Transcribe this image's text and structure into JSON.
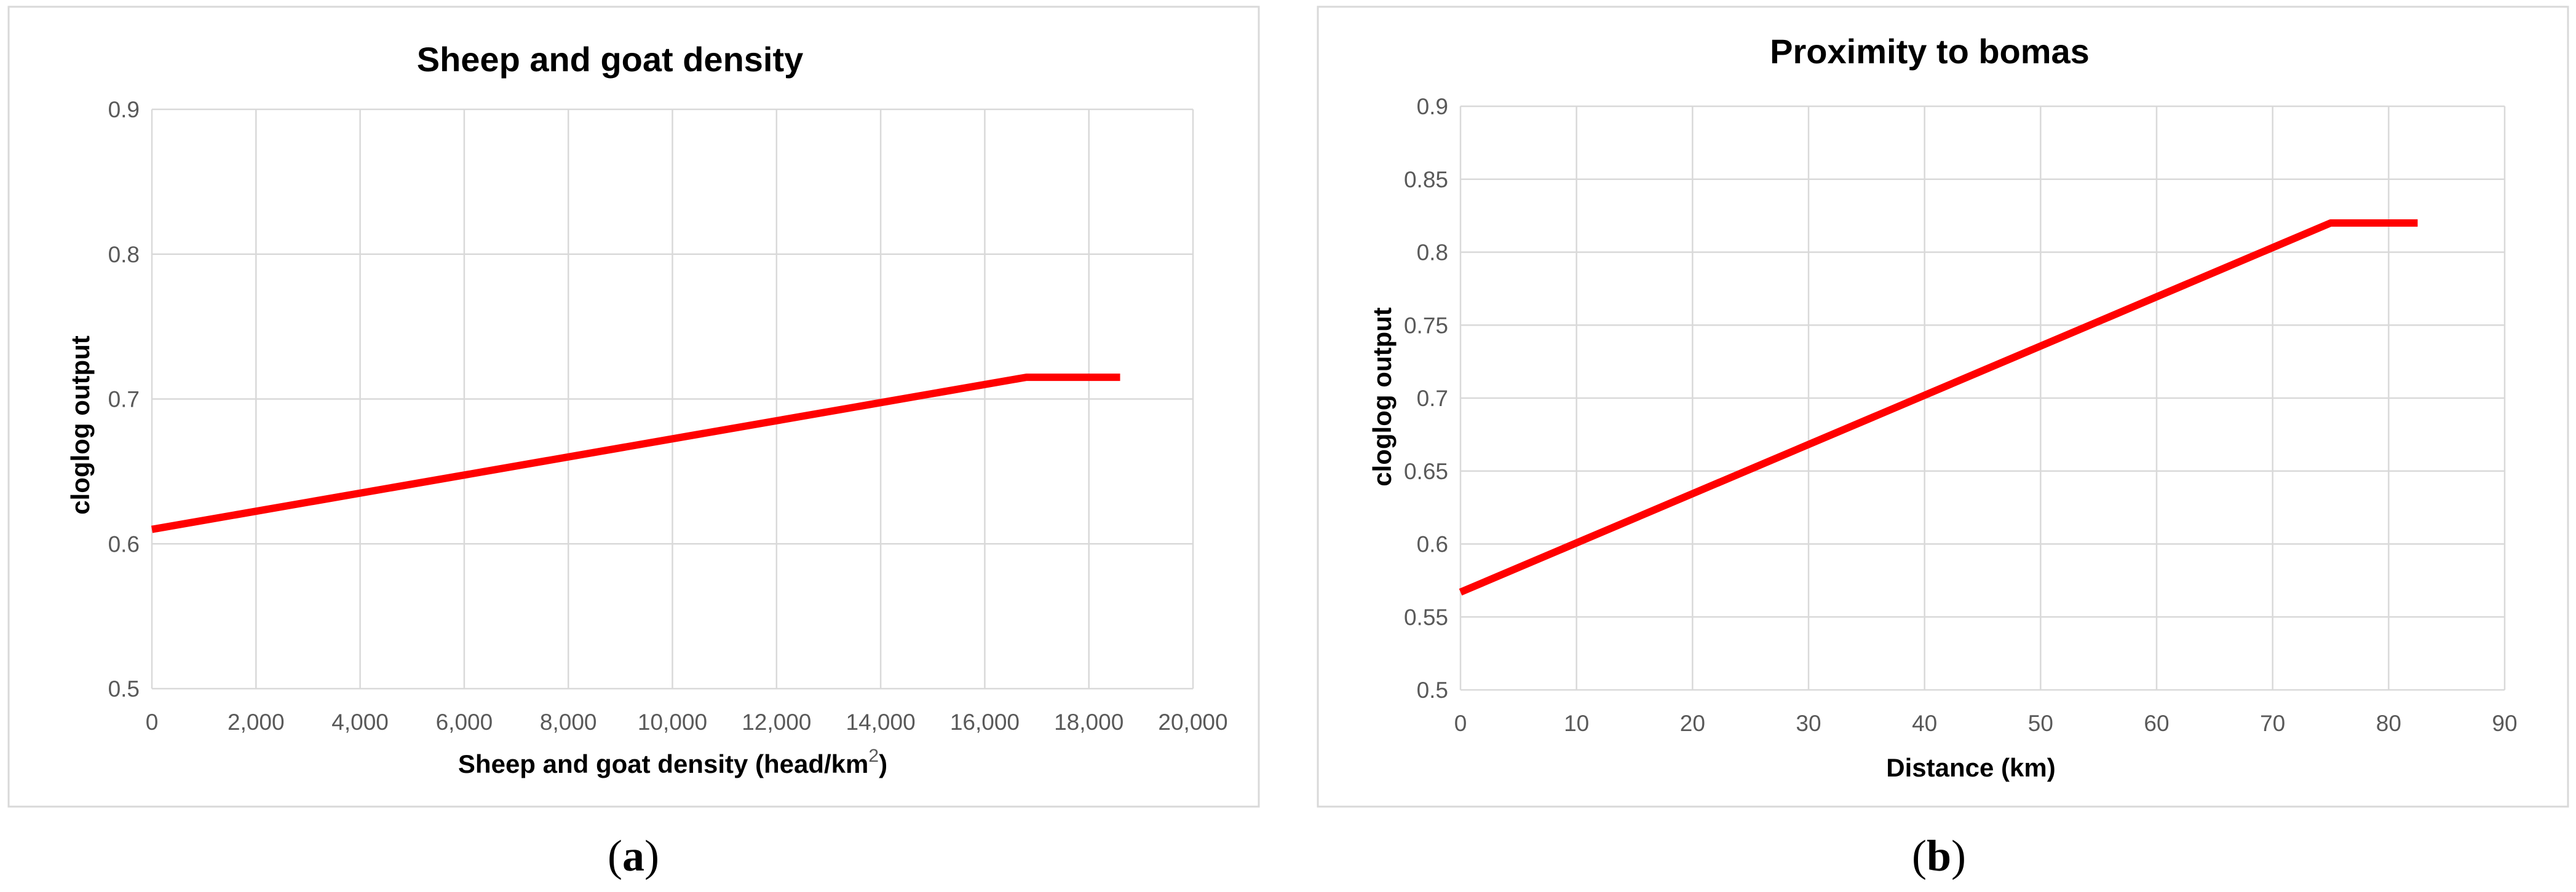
{
  "chart_data": [
    {
      "type": "line",
      "title": "Sheep and goat density",
      "xlabel": "Sheep and goat density (head/km",
      "xlabel_sup": "2",
      "xlabel_end": ")",
      "ylabel": "cloglog output",
      "xlim": [
        0,
        20000
      ],
      "ylim": [
        0.5,
        0.9
      ],
      "x_ticks": [
        0,
        2000,
        4000,
        6000,
        8000,
        10000,
        12000,
        14000,
        16000,
        18000,
        20000
      ],
      "x_tick_labels": [
        "0",
        "2,000",
        "4,000",
        "6,000",
        "8,000",
        "10,000",
        "12,000",
        "14,000",
        "16,000",
        "18,000",
        "20,000"
      ],
      "y_ticks": [
        0.5,
        0.6,
        0.7,
        0.8,
        0.9
      ],
      "y_tick_labels": [
        "0.5",
        "0.6",
        "0.7",
        "0.8",
        "0.9"
      ],
      "grid": true,
      "series": [
        {
          "color": "#ff0000",
          "x": [
            0,
            16800,
            18600
          ],
          "y": [
            0.61,
            0.715,
            0.715
          ]
        }
      ],
      "panel_label_open": "(",
      "panel_label": "a",
      "panel_label_close": ")"
    },
    {
      "type": "line",
      "title": "Proximity to bomas",
      "xlabel": "Distance (km)",
      "ylabel": "cloglog output",
      "xlim": [
        0,
        90
      ],
      "ylim": [
        0.5,
        0.9
      ],
      "x_ticks": [
        0,
        10,
        20,
        30,
        40,
        50,
        60,
        70,
        80,
        90
      ],
      "x_tick_labels": [
        "0",
        "10",
        "20",
        "30",
        "40",
        "50",
        "60",
        "70",
        "80",
        "90"
      ],
      "y_ticks": [
        0.5,
        0.55,
        0.6,
        0.65,
        0.7,
        0.75,
        0.8,
        0.85,
        0.9
      ],
      "y_tick_labels": [
        "0.5",
        "0.55",
        "0.6",
        "0.65",
        "0.7",
        "0.75",
        "0.8",
        "0.85",
        "0.9"
      ],
      "grid": true,
      "series": [
        {
          "color": "#ff0000",
          "x": [
            0,
            75,
            82.5
          ],
          "y": [
            0.567,
            0.82,
            0.82
          ]
        }
      ],
      "panel_label_open": "(",
      "panel_label": "b",
      "panel_label_close": ")"
    }
  ]
}
